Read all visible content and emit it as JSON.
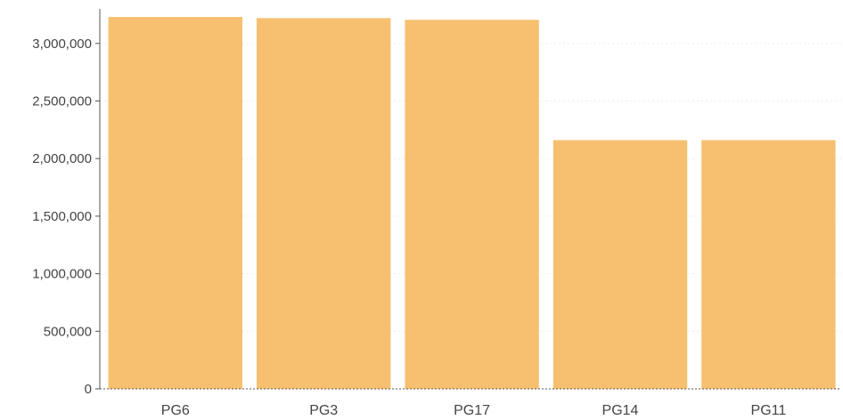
{
  "chart_data": {
    "type": "bar",
    "categories": [
      "PG6",
      "PG3",
      "PG17",
      "PG14",
      "PG11"
    ],
    "series": [
      {
        "values": [
          3230000,
          3220000,
          3205000,
          2160000,
          2160000
        ]
      }
    ],
    "xlabel": "",
    "ylabel": "",
    "ylim": [
      0,
      3300000
    ],
    "yticks": [
      0,
      500000,
      1000000,
      1500000,
      2000000,
      2500000,
      3000000
    ],
    "ytick_labels": [
      "0",
      "500,000",
      "1,000,000",
      "1,500,000",
      "2,000,000",
      "2,500,000",
      "3,000,000"
    ],
    "grid": true,
    "legend": "none",
    "colors": {
      "bar": "#F7C070",
      "grid": "#eeeeee",
      "axis": "#555555"
    }
  }
}
